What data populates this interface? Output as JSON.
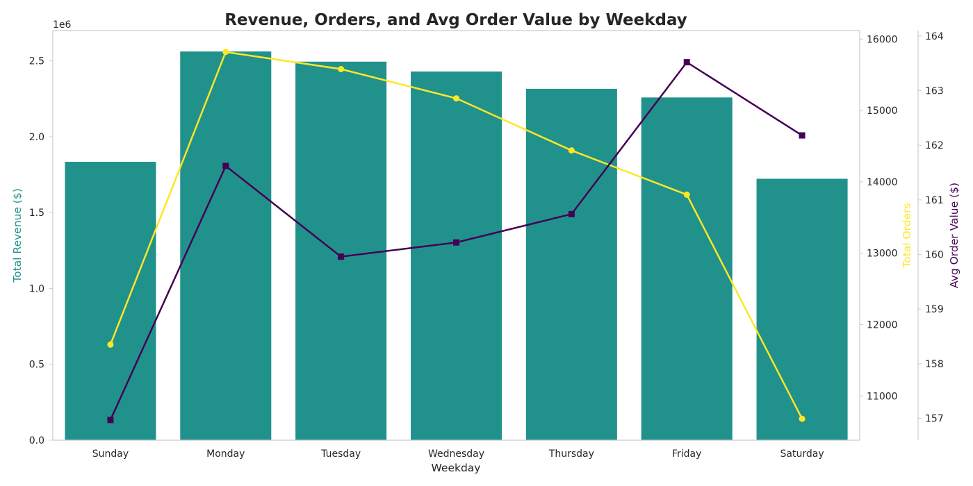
{
  "colors": {
    "bars": "#21918c",
    "orders_line": "#fde725",
    "aov_line": "#440154",
    "spine": "#cccccc",
    "text": "#262626"
  },
  "chart_data": {
    "type": "bar",
    "title": "Revenue, Orders, and Avg Order Value by Weekday",
    "xlabel": "Weekday",
    "categories": [
      "Sunday",
      "Monday",
      "Tuesday",
      "Wednesday",
      "Thursday",
      "Friday",
      "Saturday"
    ],
    "grid": false,
    "axes": {
      "left": {
        "label": "Total Revenue ($)",
        "offset_text": "1e6",
        "ylim": [
          0,
          2700000
        ],
        "ticks": [
          0,
          500000,
          1000000,
          1500000,
          2000000,
          2500000
        ],
        "tick_labels": [
          "0.0",
          "0.5",
          "1.0",
          "1.5",
          "2.0",
          "2.5"
        ]
      },
      "right1": {
        "label": "Total Orders",
        "ylim": [
          10380,
          16120
        ],
        "ticks": [
          11000,
          12000,
          13000,
          14000,
          15000,
          16000
        ],
        "tick_labels": [
          "11000",
          "12000",
          "13000",
          "14000",
          "15000",
          "16000"
        ]
      },
      "right2": {
        "label": "Avg Order Value ($)",
        "ylim": [
          156.6,
          164.1
        ],
        "ticks": [
          157,
          158,
          159,
          160,
          161,
          162,
          163,
          164
        ],
        "tick_labels": [
          "157",
          "158",
          "159",
          "160",
          "161",
          "162",
          "163",
          "164"
        ]
      }
    },
    "series": [
      {
        "type": "bar",
        "axis": "left",
        "values": [
          1835000,
          2562000,
          2495000,
          2430000,
          2316000,
          2259000,
          1723000
        ]
      },
      {
        "type": "line",
        "axis": "right1",
        "marker": "circle",
        "values": [
          11720,
          15820,
          15580,
          15170,
          14440,
          13820,
          10680
        ]
      },
      {
        "type": "line",
        "axis": "right2",
        "marker": "square",
        "values": [
          156.97,
          161.62,
          159.96,
          160.22,
          160.74,
          163.52,
          162.18
        ]
      }
    ]
  }
}
